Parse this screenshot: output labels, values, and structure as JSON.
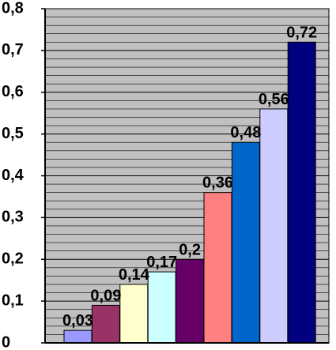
{
  "chart_data": {
    "type": "bar",
    "title": "",
    "xlabel": "",
    "ylabel": "",
    "ylim": [
      0,
      0.8
    ],
    "yticks": [
      "0",
      "0,1",
      "0,2",
      "0,3",
      "0,4",
      "0,5",
      "0,6",
      "0,7",
      "0,8"
    ],
    "grid": true,
    "legend": "none",
    "background_color": "#c0c0c0",
    "values": [
      0.03,
      0.09,
      0.14,
      0.17,
      0.2,
      0.36,
      0.48,
      0.56,
      0.72
    ],
    "data_labels": [
      "0,03",
      "0,09",
      "0,14",
      "0,17",
      "0,2",
      "0,36",
      "0,48",
      "0,56",
      "0,72"
    ],
    "colors": [
      "#9999ff",
      "#993366",
      "#ffffcc",
      "#ccffff",
      "#660066",
      "#ff8080",
      "#0066cc",
      "#ccccff",
      "#000080"
    ]
  }
}
